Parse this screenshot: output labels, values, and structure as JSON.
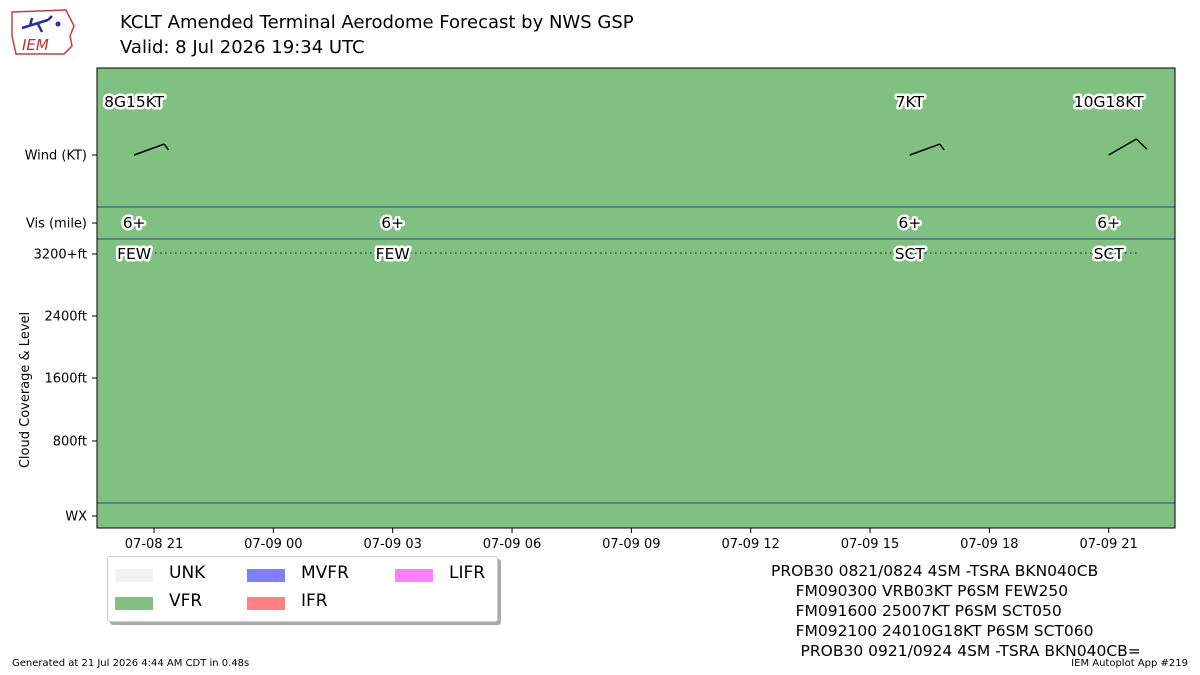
{
  "header": {
    "title_line1": "KCLT Amended Terminal Aerodome Forecast by NWS GSP",
    "title_line2": "Valid: 8 Jul 2026 19:34 UTC",
    "logo_text": "IEM"
  },
  "chart_data": {
    "type": "timeline",
    "title": "KCLT Amended Terminal Aerodome Forecast by NWS GSP",
    "subtitle": "Valid: 8 Jul 2026 19:34 UTC",
    "xlabel": "",
    "ylabel": "Cloud Coverage & Level",
    "x_range": [
      "07-08 19:34",
      "07-09 22:40"
    ],
    "x_ticks": [
      "07-08 21",
      "07-09 00",
      "07-09 03",
      "07-09 06",
      "07-09 09",
      "07-09 12",
      "07-09 15",
      "07-09 18",
      "07-09 21"
    ],
    "y_tick_labels": [
      "Wind (KT)",
      "Vis (mile)",
      "3200+ft",
      "2400ft",
      "1600ft",
      "800ft",
      "WX"
    ],
    "flight_category_background": "VFR",
    "background_color": "#80c080",
    "wind": [
      {
        "time": "07-08 20:30",
        "label": "8G15KT",
        "direction_deg": 250,
        "speed_kt": 8
      },
      {
        "time": "07-09 16:00",
        "label": "7KT",
        "direction_deg": 250,
        "speed_kt": 7
      },
      {
        "time": "07-09 21:00",
        "label": "10G18KT",
        "direction_deg": 240,
        "speed_kt": 10
      }
    ],
    "visibility": [
      {
        "time": "07-08 20:30",
        "label": "6+"
      },
      {
        "time": "07-09 03:00",
        "label": "6+"
      },
      {
        "time": "07-09 16:00",
        "label": "6+"
      },
      {
        "time": "07-09 21:00",
        "label": "6+"
      }
    ],
    "clouds": [
      {
        "time": "07-08 20:30",
        "label": "FEW",
        "level": "3200+ft"
      },
      {
        "time": "07-09 03:00",
        "label": "FEW",
        "level": "3200+ft"
      },
      {
        "time": "07-09 16:00",
        "label": "SCT",
        "level": "3200+ft"
      },
      {
        "time": "07-09 21:00",
        "label": "SCT",
        "level": "3200+ft"
      }
    ],
    "legend": {
      "placement": "bottom-left",
      "entries": [
        {
          "name": "UNK",
          "color": "#f2f2f2"
        },
        {
          "name": "MVFR",
          "color": "#8080ff"
        },
        {
          "name": "LIFR",
          "color": "#ff80ff"
        },
        {
          "name": "VFR",
          "color": "#80c080"
        },
        {
          "name": "IFR",
          "color": "#ff8080"
        }
      ]
    }
  },
  "taf_text": [
    "PROB30 0821/0824 4SM -TSRA BKN040CB",
    "     FM090300 VRB03KT P6SM FEW250",
    "     FM091600 25007KT P6SM SCT050",
    "     FM092100 24010G18KT P6SM SCT060",
    "      PROB30 0921/0924 4SM -TSRA BKN040CB="
  ],
  "footer": {
    "left": "Generated at 21 Jul 2026 4:44 AM CDT in 0.48s",
    "right": "IEM Autoplot App #219"
  }
}
